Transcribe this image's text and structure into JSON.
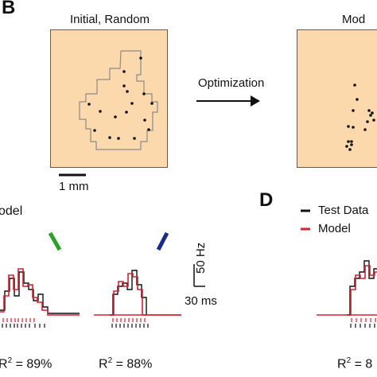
{
  "panel_b": {
    "letter": "B",
    "left_title": "Initial, Random",
    "right_title": "Mod",
    "arrow_label": "Optimization",
    "scale_label": "1 mm"
  },
  "panel_c": {
    "legend_partial": "odel",
    "scale_y": "50 Hz",
    "scale_x": "30 ms",
    "r2_left": "= 89%",
    "r2_right": "= 88%",
    "orientation_colors": [
      "#2aa02a",
      "#1a2a8a"
    ]
  },
  "panel_d": {
    "letter": "D",
    "legend": [
      {
        "label": "Test Data",
        "color": "#111111"
      },
      {
        "label": "Model",
        "color": "#d62030"
      }
    ],
    "r2_partial": "= 8"
  },
  "r2_symbol": "R",
  "r2_exp": "2",
  "colors": {
    "arena_fill": "#fcd9ad",
    "model_red": "#d62030",
    "data_black": "#111111"
  }
}
